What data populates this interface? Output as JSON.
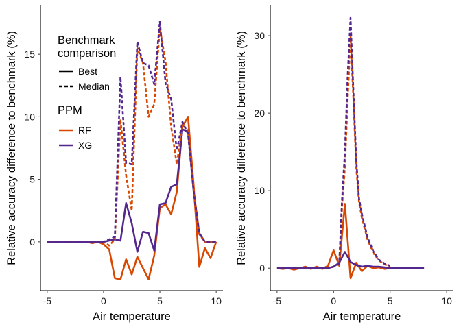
{
  "chart_data": [
    {
      "type": "line",
      "xlabel": "Air temperature",
      "ylabel": "Relative accuracy difference to benchmark (%)",
      "xlim": [
        -5.6,
        10.6
      ],
      "ylim": [
        -3.9,
        18.9
      ],
      "xticks": [
        -5,
        0,
        5,
        10
      ],
      "xtick_labels": [
        "-5",
        "0",
        "5",
        "10"
      ],
      "yticks": [
        0,
        5,
        10,
        15
      ],
      "ytick_labels": [
        "0",
        "5",
        "10",
        "15"
      ],
      "series": [
        {
          "name": "Best",
          "ppm": "RF",
          "comparison": "Best",
          "color": "#d94801",
          "dash": "solid",
          "x": [
            -5,
            -4.5,
            -4,
            -3.5,
            -3,
            -2.5,
            -2,
            -1.5,
            -1,
            -0.5,
            0,
            0.5,
            1,
            1.5,
            2,
            2.5,
            3,
            3.5,
            4,
            4.5,
            5,
            5.5,
            6,
            6.5,
            7,
            7.5,
            8,
            8.5,
            9,
            9.5,
            10
          ],
          "y": [
            0,
            0,
            0,
            0,
            0,
            0,
            0,
            0,
            -0.1,
            0,
            -0.2,
            -0.6,
            -2.9,
            -3.0,
            -1.4,
            -2.6,
            -1.2,
            -2.1,
            -3.0,
            -1.1,
            2.7,
            3.0,
            2.2,
            4.0,
            9.2,
            10.0,
            4.5,
            -2.0,
            -0.5,
            -1.3,
            0
          ]
        },
        {
          "name": "Best",
          "ppm": "XG",
          "comparison": "Best",
          "color": "#54278f",
          "dash": "solid",
          "x": [
            -5,
            -4.5,
            -4,
            -3.5,
            -3,
            -2.5,
            -2,
            -1.5,
            -1,
            -0.5,
            0,
            0.5,
            1,
            1.5,
            2,
            2.5,
            3,
            3.5,
            4,
            4.5,
            5,
            5.5,
            6,
            6.5,
            7,
            7.5,
            8,
            8.5,
            9,
            9.5,
            10
          ],
          "y": [
            0,
            0,
            0,
            0,
            0,
            0,
            0,
            0,
            0,
            0,
            0,
            0.1,
            0.2,
            0.1,
            3.1,
            1.5,
            -0.8,
            0.8,
            0.7,
            -0.7,
            3.0,
            3.1,
            4.4,
            4.6,
            9.0,
            8.8,
            4.0,
            0.7,
            0,
            0,
            0
          ]
        },
        {
          "name": "Median",
          "ppm": "RF",
          "comparison": "Median",
          "color": "#d94801",
          "dash": "dashed",
          "x": [
            -5,
            -4.5,
            -4,
            -3.5,
            -3,
            -2.5,
            -2,
            -1.5,
            -1,
            -0.5,
            0,
            0.5,
            1,
            1.5,
            2,
            2.5,
            3,
            3.5,
            4,
            4.5,
            5,
            5.5,
            6,
            6.5,
            7,
            7.5,
            8,
            8.5,
            9,
            9.5,
            10
          ],
          "y": [
            0,
            0,
            0,
            0,
            0,
            0,
            0,
            0,
            0,
            0,
            0,
            -0.3,
            0.2,
            9.8,
            5.3,
            2.5,
            15.5,
            14.3,
            10.0,
            11.0,
            17.1,
            14.4,
            9.2,
            6.2,
            9.3,
            9.0,
            4.2,
            0.6,
            0,
            0,
            0
          ]
        },
        {
          "name": "Median",
          "ppm": "XG",
          "comparison": "Median",
          "color": "#54278f",
          "dash": "dashed",
          "x": [
            -5,
            -4.5,
            -4,
            -3.5,
            -3,
            -2.5,
            -2,
            -1.5,
            -1,
            -0.5,
            0,
            0.5,
            1,
            1.5,
            2,
            2.5,
            3,
            3.5,
            4,
            4.5,
            5,
            5.5,
            6,
            6.5,
            7,
            7.5,
            8,
            8.5,
            9,
            9.5,
            10
          ],
          "y": [
            0,
            0,
            0,
            0,
            0,
            0,
            0,
            0,
            0,
            0,
            0,
            0.2,
            0.4,
            13.2,
            6.3,
            6.2,
            16.0,
            14.3,
            14.1,
            12.6,
            17.6,
            12.7,
            11.4,
            7.3,
            9.6,
            8.6,
            4.0,
            0.7,
            0,
            0,
            0
          ]
        }
      ]
    },
    {
      "type": "line",
      "xlabel": "Air temperature",
      "ylabel": "Relative accuracy difference to benchmark (%)",
      "xlim": [
        -5.6,
        10.6
      ],
      "ylim": [
        -2.9,
        33.9
      ],
      "xticks": [
        -5,
        0,
        5,
        10
      ],
      "xtick_labels": [
        "-5",
        "0",
        "5",
        "10"
      ],
      "yticks": [
        0,
        10,
        20,
        30
      ],
      "ytick_labels": [
        "0",
        "10",
        "20",
        "30"
      ],
      "series": [
        {
          "name": "Best",
          "ppm": "RF",
          "comparison": "Best",
          "color": "#d94801",
          "dash": "solid",
          "x": [
            -5,
            -4.5,
            -4,
            -3.5,
            -3,
            -2.5,
            -2,
            -1.5,
            -1,
            -0.5,
            0,
            0.5,
            1,
            1.5,
            2,
            2.5,
            3,
            3.5,
            4,
            4.5,
            5,
            5.5,
            6,
            6.5,
            7,
            7.5,
            8
          ],
          "y": [
            0,
            -0.1,
            0,
            -0.2,
            0,
            0.2,
            -0.1,
            0.2,
            -0.1,
            0.3,
            2.3,
            0.3,
            8.3,
            -1.3,
            0.7,
            -0.4,
            0.3,
            0,
            0.1,
            -0.1,
            0,
            0,
            0,
            0,
            0,
            0,
            0
          ]
        },
        {
          "name": "Best",
          "ppm": "XG",
          "comparison": "Best",
          "color": "#54278f",
          "dash": "solid",
          "x": [
            -5,
            -4.5,
            -4,
            -3.5,
            -3,
            -2.5,
            -2,
            -1.5,
            -1,
            -0.5,
            0,
            0.5,
            1,
            1.5,
            2,
            2.5,
            3,
            3.5,
            4,
            4.5,
            5,
            5.5,
            6,
            6.5,
            7,
            7.5,
            8
          ],
          "y": [
            0,
            0,
            0,
            0,
            0,
            0,
            0,
            0,
            0,
            0,
            0.2,
            0.7,
            2.1,
            0.8,
            0.4,
            0.2,
            0.3,
            0.2,
            0.2,
            0.1,
            0,
            0,
            0,
            0,
            0,
            0,
            0
          ]
        },
        {
          "name": "Median",
          "ppm": "RF",
          "comparison": "Median",
          "color": "#d94801",
          "dash": "dashed",
          "x": [
            -5,
            -4.5,
            -4,
            -3.5,
            -3,
            -2.5,
            -2,
            -1.5,
            -1,
            -0.5,
            0,
            0.5,
            0.75,
            1,
            1.25,
            1.5,
            1.75,
            2,
            2.25,
            2.5,
            3,
            3.5,
            4,
            4.5,
            5
          ],
          "y": [
            0,
            0,
            0,
            0,
            0,
            0,
            0,
            0,
            0,
            0,
            0.2,
            0.5,
            8.0,
            13.0,
            22.0,
            30.0,
            22.0,
            13.0,
            8.5,
            6.5,
            3.7,
            2.0,
            1.0,
            0.5,
            0.2
          ]
        },
        {
          "name": "Median",
          "ppm": "XG",
          "comparison": "Median",
          "color": "#54278f",
          "dash": "dashed",
          "x": [
            -5,
            -4.5,
            -4,
            -3.5,
            -3,
            -2.5,
            -2,
            -1.5,
            -1,
            -0.5,
            0,
            0.5,
            0.75,
            1,
            1.25,
            1.5,
            1.75,
            2,
            2.25,
            2.5,
            3,
            3.5,
            4,
            4.5,
            5
          ],
          "y": [
            0,
            0,
            0,
            0,
            0,
            0,
            0,
            0,
            0,
            0,
            0.2,
            0.6,
            9.0,
            15.0,
            25.0,
            32.3,
            23.0,
            14.0,
            9.0,
            7.0,
            4.0,
            2.2,
            1.1,
            0.6,
            0.3
          ]
        }
      ]
    }
  ],
  "legend": {
    "comparison_title": "Benchmark\ncomparison",
    "comparison_items": [
      {
        "label": "Best",
        "dash": "solid"
      },
      {
        "label": "Median",
        "dash": "dashed"
      }
    ],
    "ppm_title": "PPM",
    "ppm_items": [
      {
        "label": "RF",
        "color": "#d94801"
      },
      {
        "label": "XG",
        "color": "#54278f"
      }
    ]
  }
}
